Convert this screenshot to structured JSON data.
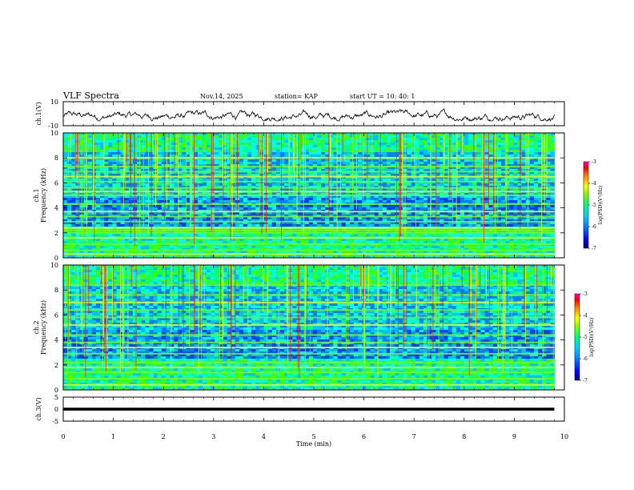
{
  "header": {
    "title": "VLF Spectra",
    "date": "Nov.14, 2025",
    "station": "station= KAP",
    "start_ut": "start  UT =   10: 40: 1"
  },
  "colors": {
    "spectrogram_scale": [
      "#000080",
      "#0000ff",
      "#0080ff",
      "#00c0ff",
      "#00ffc0",
      "#00ff40",
      "#80ff00",
      "#ffff00",
      "#ff8000",
      "#ff0000",
      "#ff00c0"
    ],
    "trace": "#000000"
  },
  "chart_data": [
    {
      "type": "line",
      "name": "ch1-waveform",
      "ylabel": "ch.1(V)",
      "ylim": [
        -10,
        10
      ],
      "yticks": [
        "10",
        "-10"
      ],
      "x_extent_min": [
        0,
        9.8
      ],
      "description_values_note": "noisy waveform oscillating roughly between -6 and 4 V",
      "envelope_v": [
        -6,
        4
      ]
    },
    {
      "type": "heatmap",
      "name": "ch1-spectrogram",
      "ylabel": "Frequency (kHz)",
      "channel_label": "ch.1",
      "ylim": [
        0,
        10
      ],
      "yticks": [
        "0",
        "2",
        "4",
        "6",
        "8",
        "10"
      ],
      "x_extent_min": [
        0,
        9.8
      ],
      "colorbar": {
        "label": "log(PSD)(V²/Hz)",
        "range": [
          -7,
          -3
        ],
        "ticks": [
          "-3",
          "-4",
          "-5",
          "-6",
          "-7"
        ]
      },
      "bands_khz": [
        0.3,
        0.6,
        1.1,
        1.6,
        2.0,
        2.2,
        2.4,
        2.9,
        3.3,
        3.7,
        4.3,
        5.0,
        5.3,
        5.6,
        6.1,
        6.5,
        6.9,
        7.3,
        8.0
      ]
    },
    {
      "type": "heatmap",
      "name": "ch2-spectrogram",
      "ylabel": "Frequency (kHz)",
      "channel_label": "ch.2",
      "ylim": [
        0,
        10
      ],
      "yticks": [
        "0",
        "2",
        "4",
        "6",
        "8",
        "10"
      ],
      "x_extent_min": [
        0,
        9.8
      ],
      "colorbar": {
        "label": "log(PSD)(V²/Hz)",
        "range": [
          -7,
          -3
        ],
        "ticks": [
          "-3",
          "-4",
          "-5",
          "-6",
          "-7"
        ]
      },
      "bands_khz": [
        0.4,
        0.9,
        1.4,
        1.8,
        2.2,
        2.9,
        3.4,
        3.8,
        4.4,
        5.2,
        5.8,
        6.4,
        7.0,
        7.6,
        8.4
      ]
    },
    {
      "type": "line",
      "name": "ch3-waveform",
      "ylabel": "ch.3(V)",
      "ylim": [
        -5,
        5
      ],
      "yticks": [
        "5",
        "0",
        "-5"
      ],
      "x_extent_min": [
        0,
        9.8
      ],
      "envelope_v": [
        -0.6,
        0.6
      ]
    }
  ],
  "xaxis": {
    "label": "Time  (min)",
    "ticks": [
      "0",
      "1",
      "2",
      "3",
      "4",
      "5",
      "6",
      "7",
      "8",
      "9",
      "10"
    ],
    "range": [
      0,
      10
    ]
  },
  "colorbar_label": "log(PSD)(V²/Hz)",
  "colorbar_ticks": [
    "-3",
    "-4",
    "-5",
    "-6",
    "-7"
  ]
}
